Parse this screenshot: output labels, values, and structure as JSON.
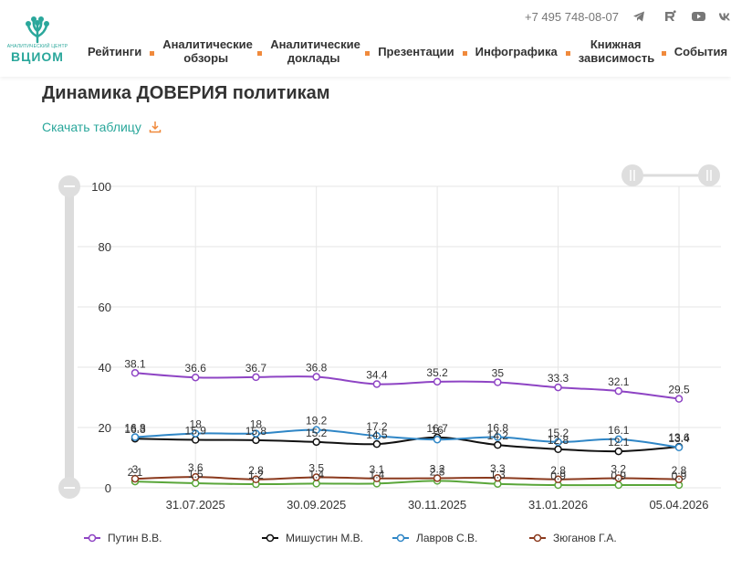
{
  "header": {
    "logo_caption": "АНАЛИТИЧЕСКИЙ ЦЕНТР",
    "logo_name": "ВЦИОМ",
    "phone": "+7 495 748-08-07",
    "social_icons": [
      "telegram-icon",
      "rutube-icon",
      "youtube-icon",
      "vk-icon"
    ],
    "nav": [
      {
        "label": "Рейтинги"
      },
      {
        "label": "Аналитические обзоры"
      },
      {
        "label": "Аналитические доклады"
      },
      {
        "label": "Презентации"
      },
      {
        "label": "Инфографика"
      },
      {
        "label": "Книжная зависимость"
      },
      {
        "label": "События"
      }
    ],
    "accent_color": "#2aa79b",
    "nav_dot_color": "#f08a3c"
  },
  "page": {
    "title": "Динамика ДОВЕРИЯ политикам",
    "download_label": "Скачать таблицу"
  },
  "chart_data": {
    "type": "line",
    "title": "",
    "xlabel": "",
    "ylabel": "",
    "ylim": [
      0,
      100
    ],
    "yticks": [
      0,
      20,
      40,
      60,
      80,
      100
    ],
    "grid": true,
    "legend_position": "bottom",
    "x_tick_labels": [
      "31.07.2025",
      "30.09.2025",
      "30.11.2025",
      "31.01.2026",
      "05.04.2026"
    ],
    "series": [
      {
        "name": "Путин В.В.",
        "color": "#8e44c4",
        "values": [
          38.1,
          36.6,
          36.7,
          36.8,
          34.4,
          35.2,
          35,
          33.3,
          32.1,
          29.5
        ]
      },
      {
        "name": "Мишустин М.В.",
        "color": "#111111",
        "values": [
          16.3,
          15.9,
          15.8,
          15.2,
          14.5,
          16.7,
          14.2,
          12.8,
          12.1,
          13.6
        ]
      },
      {
        "name": "Лавров С.В.",
        "color": "#2f86c6",
        "values": [
          16.8,
          18,
          18,
          19.2,
          17.2,
          16,
          16.8,
          15.2,
          16.1,
          13.4
        ]
      },
      {
        "name": "Зюганов Г.А.",
        "color": "#8b3a1e",
        "values": [
          3,
          3.6,
          2.8,
          3.5,
          3.1,
          3.2,
          3.3,
          2.8,
          3.2,
          2.8
        ]
      },
      {
        "name": "",
        "color": "#5aa63a",
        "values": [
          2.1,
          1.5,
          1.2,
          1.4,
          1.4,
          2.3,
          1.3,
          0.9,
          0.9,
          0.9
        ]
      }
    ]
  }
}
